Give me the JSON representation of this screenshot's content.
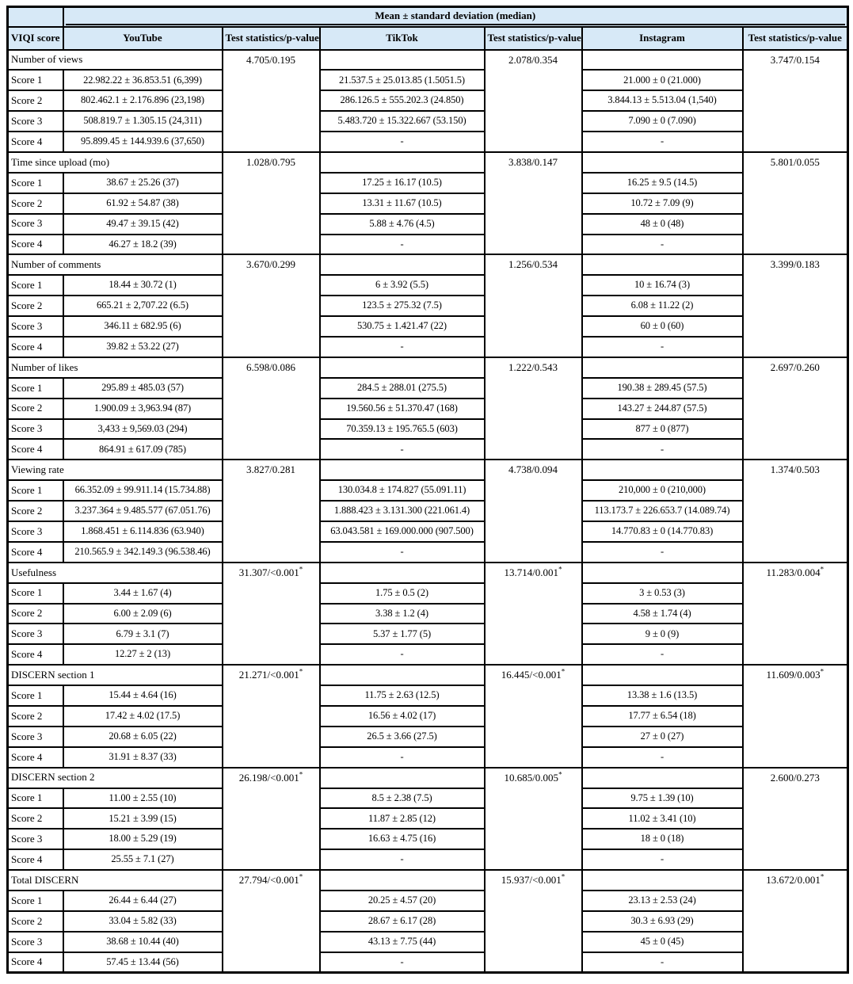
{
  "colors": {
    "header_bg": "#d7e9f7",
    "border": "#000000"
  },
  "header": {
    "span_title": "Mean ± standard deviation (median)",
    "columns": [
      "VIQI score",
      "YouTube",
      "Test statistics/p-value",
      "TikTok",
      "Test statistics/p-value",
      "Instagram",
      "Test statistics/p-value"
    ]
  },
  "score_labels": [
    "Score 1",
    "Score 2",
    "Score 3",
    "Score 4"
  ],
  "empty_value": "-",
  "chart_data": {
    "type": "table",
    "title": "Mean ± standard deviation (median)",
    "columns": [
      "VIQI score",
      "YouTube",
      "Test statistics/p-value",
      "TikTok",
      "Test statistics/p-value",
      "Instagram",
      "Test statistics/p-value"
    ],
    "note": "Asterisk (*) rendered as superscript marks statistically significant p-values"
  },
  "groups": [
    {
      "category": "Number of views",
      "tests": [
        "4.705/0.195",
        "2.078/0.354",
        "3.747/0.154"
      ],
      "rows": [
        [
          "22.982.22 ± 36.853.51 (6,399)",
          "21.537.5 ± 25.013.85 (1.5051.5)",
          "21.000 ± 0 (21.000)"
        ],
        [
          "802.462.1 ± 2.176.896 (23,198)",
          "286.126.5 ± 555.202.3 (24.850)",
          "3.844.13 ± 5.513.04 (1,540)"
        ],
        [
          "508.819.7 ± 1.305.15 (24,311)",
          "5.483.720 ± 15.322.667 (53.150)",
          "7.090 ± 0 (7.090)"
        ],
        [
          "95.899.45 ± 144.939.6 (37,650)",
          "-",
          "-"
        ]
      ]
    },
    {
      "category": "Time since upload (mo)",
      "tests": [
        "1.028/0.795",
        "3.838/0.147",
        "5.801/0.055"
      ],
      "rows": [
        [
          "38.67 ± 25.26 (37)",
          "17.25 ± 16.17 (10.5)",
          "16.25 ± 9.5 (14.5)"
        ],
        [
          "61.92 ± 54.87 (38)",
          "13.31 ± 11.67 (10.5)",
          "10.72 ± 7.09 (9)"
        ],
        [
          "49.47 ± 39.15 (42)",
          "5.88 ± 4.76 (4.5)",
          "48 ± 0 (48)"
        ],
        [
          "46.27 ± 18.2 (39)",
          "-",
          "-"
        ]
      ]
    },
    {
      "category": "Number of comments",
      "tests": [
        "3.670/0.299",
        "1.256/0.534",
        "3.399/0.183"
      ],
      "rows": [
        [
          "18.44 ± 30.72 (1)",
          "6 ± 3.92 (5.5)",
          "10 ± 16.74 (3)"
        ],
        [
          "665.21 ± 2,707.22 (6.5)",
          "123.5 ± 275.32 (7.5)",
          "6.08 ± 11.22 (2)"
        ],
        [
          "346.11 ± 682.95 (6)",
          "530.75 ± 1.421.47 (22)",
          "60 ± 0 (60)"
        ],
        [
          "39.82 ± 53.22 (27)",
          "-",
          "-"
        ]
      ]
    },
    {
      "category": "Number of likes",
      "tests": [
        "6.598/0.086",
        "1.222/0.543",
        "2.697/0.260"
      ],
      "rows": [
        [
          "295.89 ± 485.03 (57)",
          "284.5 ± 288.01 (275.5)",
          "190.38 ± 289.45 (57.5)"
        ],
        [
          "1.900.09 ± 3,963.94 (87)",
          "19.560.56 ± 51.370.47 (168)",
          "143.27 ± 244.87 (57.5)"
        ],
        [
          "3,433 ± 9,569.03 (294)",
          "70.359.13 ± 195.765.5 (603)",
          "877 ± 0 (877)"
        ],
        [
          "864.91 ± 617.09 (785)",
          "-",
          "-"
        ]
      ]
    },
    {
      "category": "Viewing rate",
      "tests": [
        "3.827/0.281",
        "4.738/0.094",
        "1.374/0.503"
      ],
      "rows": [
        [
          "66.352.09 ± 99.911.14 (15.734.88)",
          "130.034.8 ± 174.827 (55.091.11)",
          "210,000 ± 0 (210,000)"
        ],
        [
          "3.237.364 ± 9.485.577 (67.051.76)",
          "1.888.423 ± 3.131.300 (221.061.4)",
          "113.173.7 ± 226.653.7 (14.089.74)"
        ],
        [
          "1.868.451 ± 6.114.836 (63.940)",
          "63.043.581 ± 169.000.000 (907.500)",
          "14.770.83 ± 0 (14.770.83)"
        ],
        [
          "210.565.9 ± 342.149.3 (96.538.46)",
          "-",
          "-"
        ]
      ]
    },
    {
      "category": "Usefulness",
      "tests": [
        "31.307/<0.001*",
        "13.714/0.001*",
        "11.283/0.004*"
      ],
      "rows": [
        [
          "3.44 ± 1.67 (4)",
          "1.75 ± 0.5 (2)",
          "3 ± 0.53 (3)"
        ],
        [
          "6.00 ± 2.09 (6)",
          "3.38 ± 1.2 (4)",
          "4.58 ± 1.74 (4)"
        ],
        [
          "6.79 ± 3.1 (7)",
          "5.37 ± 1.77 (5)",
          "9 ± 0 (9)"
        ],
        [
          "12.27 ± 2 (13)",
          "-",
          "-"
        ]
      ]
    },
    {
      "category": "DISCERN section 1",
      "tests": [
        "21.271/<0.001*",
        "16.445/<0.001*",
        "11.609/0.003*"
      ],
      "rows": [
        [
          "15.44 ± 4.64 (16)",
          "11.75 ± 2.63 (12.5)",
          "13.38 ± 1.6 (13.5)"
        ],
        [
          "17.42 ± 4.02 (17.5)",
          "16.56 ± 4.02 (17)",
          "17.77 ± 6.54 (18)"
        ],
        [
          "20.68 ± 6.05 (22)",
          "26.5 ± 3.66 (27.5)",
          "27 ± 0 (27)"
        ],
        [
          "31.91 ± 8.37 (33)",
          "-",
          "-"
        ]
      ]
    },
    {
      "category": "DISCERN section 2",
      "tests": [
        "26.198/<0.001*",
        "10.685/0.005*",
        "2.600/0.273"
      ],
      "rows": [
        [
          "11.00 ± 2.55 (10)",
          "8.5 ± 2.38 (7.5)",
          "9.75 ± 1.39 (10)"
        ],
        [
          "15.21 ± 3.99 (15)",
          "11.87 ± 2.85 (12)",
          "11.02 ± 3.41 (10)"
        ],
        [
          "18.00 ± 5.29 (19)",
          "16.63 ± 4.75 (16)",
          "18 ± 0 (18)"
        ],
        [
          "25.55 ± 7.1 (27)",
          "-",
          "-"
        ]
      ]
    },
    {
      "category": "Total DISCERN",
      "tests": [
        "27.794/<0.001*",
        "15.937/<0.001*",
        "13.672/0.001*"
      ],
      "rows": [
        [
          "26.44 ± 6.44 (27)",
          "20.25 ± 4.57 (20)",
          "23.13 ± 2.53 (24)"
        ],
        [
          "33.04 ± 5.82 (33)",
          "28.67 ± 6.17 (28)",
          "30.3 ± 6.93 (29)"
        ],
        [
          "38.68 ± 10.44 (40)",
          "43.13 ± 7.75 (44)",
          "45 ± 0 (45)"
        ],
        [
          "57.45 ± 13.44 (56)",
          "-",
          "-"
        ]
      ]
    }
  ]
}
